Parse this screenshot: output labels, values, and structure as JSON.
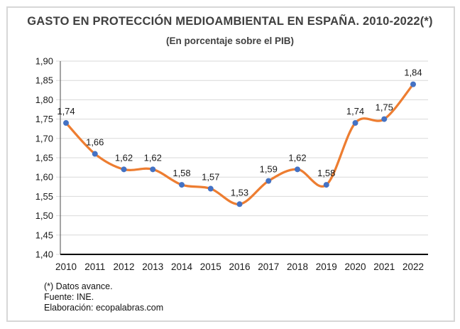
{
  "title": "GASTO EN PROTECCIÓN MEDIOAMBIENTAL EN ESPAÑA. 2010-2022(*)",
  "subtitle": "(En porcentaje sobre el PIB)",
  "footnotes": [
    "(*) Datos avance.",
    "Fuente: INE.",
    "Elaboración: ecopalabras.com"
  ],
  "colors": {
    "line": "#ED7D31",
    "marker": "#4472C4",
    "grid": "#D9D9D9",
    "y_axis": "#4A4A4A",
    "x_axis": "#000000",
    "tick_text": "#1A1A1A",
    "data_label_text": "#1A1A1A",
    "frame_border": "#D7D7D7"
  },
  "chart_data": {
    "type": "line",
    "title": "GASTO EN PROTECCIÓN MEDIOAMBIENTAL EN ESPAÑA. 2010-2022(*)",
    "subtitle": "(En porcentaje sobre el PIB)",
    "categories": [
      "2010",
      "2011",
      "2012",
      "2013",
      "2014",
      "2015",
      "2016",
      "2017",
      "2018",
      "2019",
      "2020",
      "2021",
      "2022"
    ],
    "values": [
      1.74,
      1.66,
      1.62,
      1.62,
      1.58,
      1.57,
      1.53,
      1.59,
      1.62,
      1.58,
      1.74,
      1.75,
      1.84
    ],
    "data_labels": [
      "1,74",
      "1,66",
      "1,62",
      "1,62",
      "1,58",
      "1,57",
      "1,53",
      "1,59",
      "1,62",
      "1,58",
      "1,74",
      "1,75",
      "1,84"
    ],
    "xlabel": "",
    "ylabel": "",
    "ylim": [
      1.4,
      1.9
    ],
    "ytick_step": 0.05,
    "ytick_labels": [
      "1,40",
      "1,45",
      "1,50",
      "1,55",
      "1,60",
      "1,65",
      "1,70",
      "1,75",
      "1,80",
      "1,85",
      "1,90"
    ],
    "grid": true,
    "smooth": true,
    "marker": "circle",
    "legend": "none"
  }
}
